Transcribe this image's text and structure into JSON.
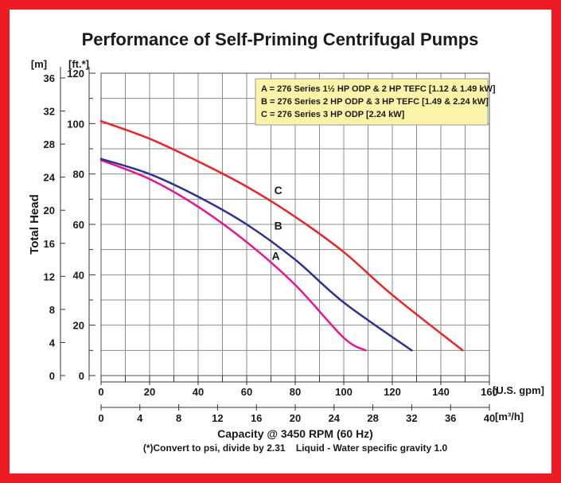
{
  "colors": {
    "frame": "#ed1c24",
    "grid": "#8c8c8c",
    "legend_bg": "#fbf3a8"
  },
  "chart_data": {
    "type": "line",
    "title": "Performance of Self-Priming Centrifugal Pumps",
    "ylabel": "Total Head",
    "xlabel": "Capacity @ 3450 RPM (60 Hz)",
    "footnote": "(*)Convert to psi, divide by 2.31    Liquid - Water specific gravity 1.0",
    "x_unit": "[U.S. gpm]",
    "x2_unit": "[m³/h]",
    "y_unit": "[ft.*]",
    "y2_unit": "[m]",
    "xlim": [
      0,
      160
    ],
    "ylim": [
      0,
      120
    ],
    "x_ticks": [
      "0",
      "20",
      "40",
      "60",
      "80",
      "100",
      "120",
      "140",
      "160"
    ],
    "x2_ticks": [
      "0",
      "4",
      "8",
      "12",
      "16",
      "20",
      "24",
      "28",
      "32",
      "36",
      "40"
    ],
    "y_ticks": [
      "0",
      "20",
      "40",
      "60",
      "80",
      "100",
      "120"
    ],
    "y2_ticks": [
      "0",
      "4",
      "8",
      "12",
      "16",
      "20",
      "24",
      "28",
      "32",
      "36"
    ],
    "grid": true,
    "legend_position": "top-right",
    "legend": [
      "A = 276 Series 1½ HP ODP & 2 HP TEFC [1.12 & 1.49 kW]",
      "B = 276 Series 2 HP ODP & 3 HP TEFC [1.49 & 2.24 kW]",
      "C = 276 Series 3 HP ODP [2.24 kW]"
    ],
    "series": [
      {
        "name": "A",
        "color": "#e6168c",
        "x": [
          0,
          20,
          40,
          60,
          80,
          100,
          109
        ],
        "y": [
          85.5,
          78,
          67,
          53,
          36,
          15,
          10
        ],
        "label_at": [
          72,
          46
        ]
      },
      {
        "name": "B",
        "color": "#2e3192",
        "x": [
          0,
          20,
          40,
          60,
          80,
          100,
          128
        ],
        "y": [
          86,
          80,
          71,
          60,
          46,
          29,
          10
        ],
        "label_at": [
          73,
          58
        ]
      },
      {
        "name": "C",
        "color": "#e8262a",
        "x": [
          0,
          20,
          40,
          60,
          80,
          100,
          120,
          149
        ],
        "y": [
          101,
          94,
          85,
          75,
          63,
          49,
          32,
          10
        ],
        "label_at": [
          73,
          72
        ]
      }
    ]
  }
}
